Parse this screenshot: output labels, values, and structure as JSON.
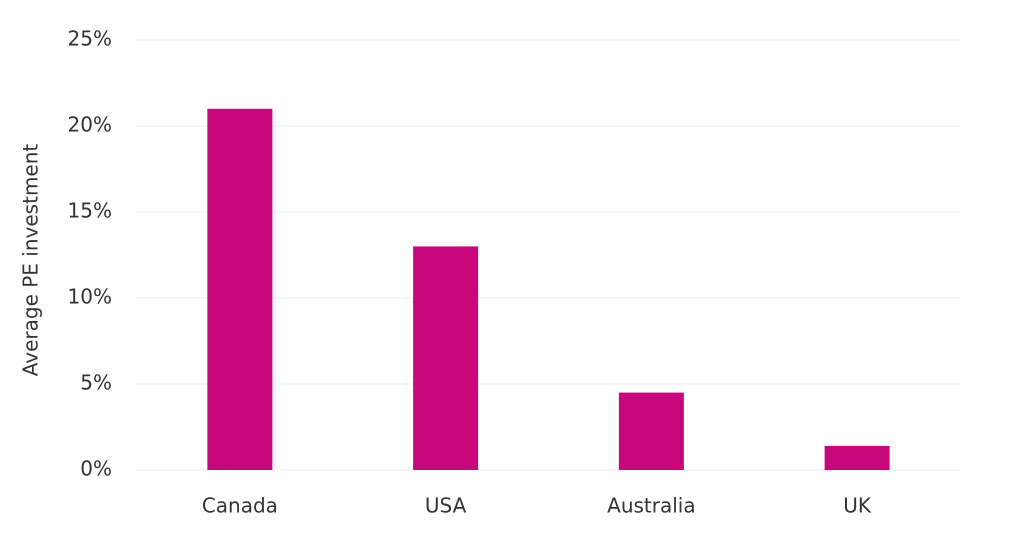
{
  "chart_data": {
    "type": "bar",
    "y_label": "Average PE investment",
    "categories": [
      "Canada",
      "USA",
      "Australia",
      "UK"
    ],
    "values": [
      21,
      13,
      4.5,
      1.4
    ],
    "color": "#c8077a",
    "ylim": [
      0,
      25
    ],
    "yticks": [
      {
        "value": 0,
        "label": "0%"
      },
      {
        "value": 5,
        "label": "5%"
      },
      {
        "value": 10,
        "label": "10%"
      },
      {
        "value": 15,
        "label": "15%"
      },
      {
        "value": 20,
        "label": "20%"
      },
      {
        "value": 25,
        "label": "25%"
      }
    ],
    "grid": true
  }
}
